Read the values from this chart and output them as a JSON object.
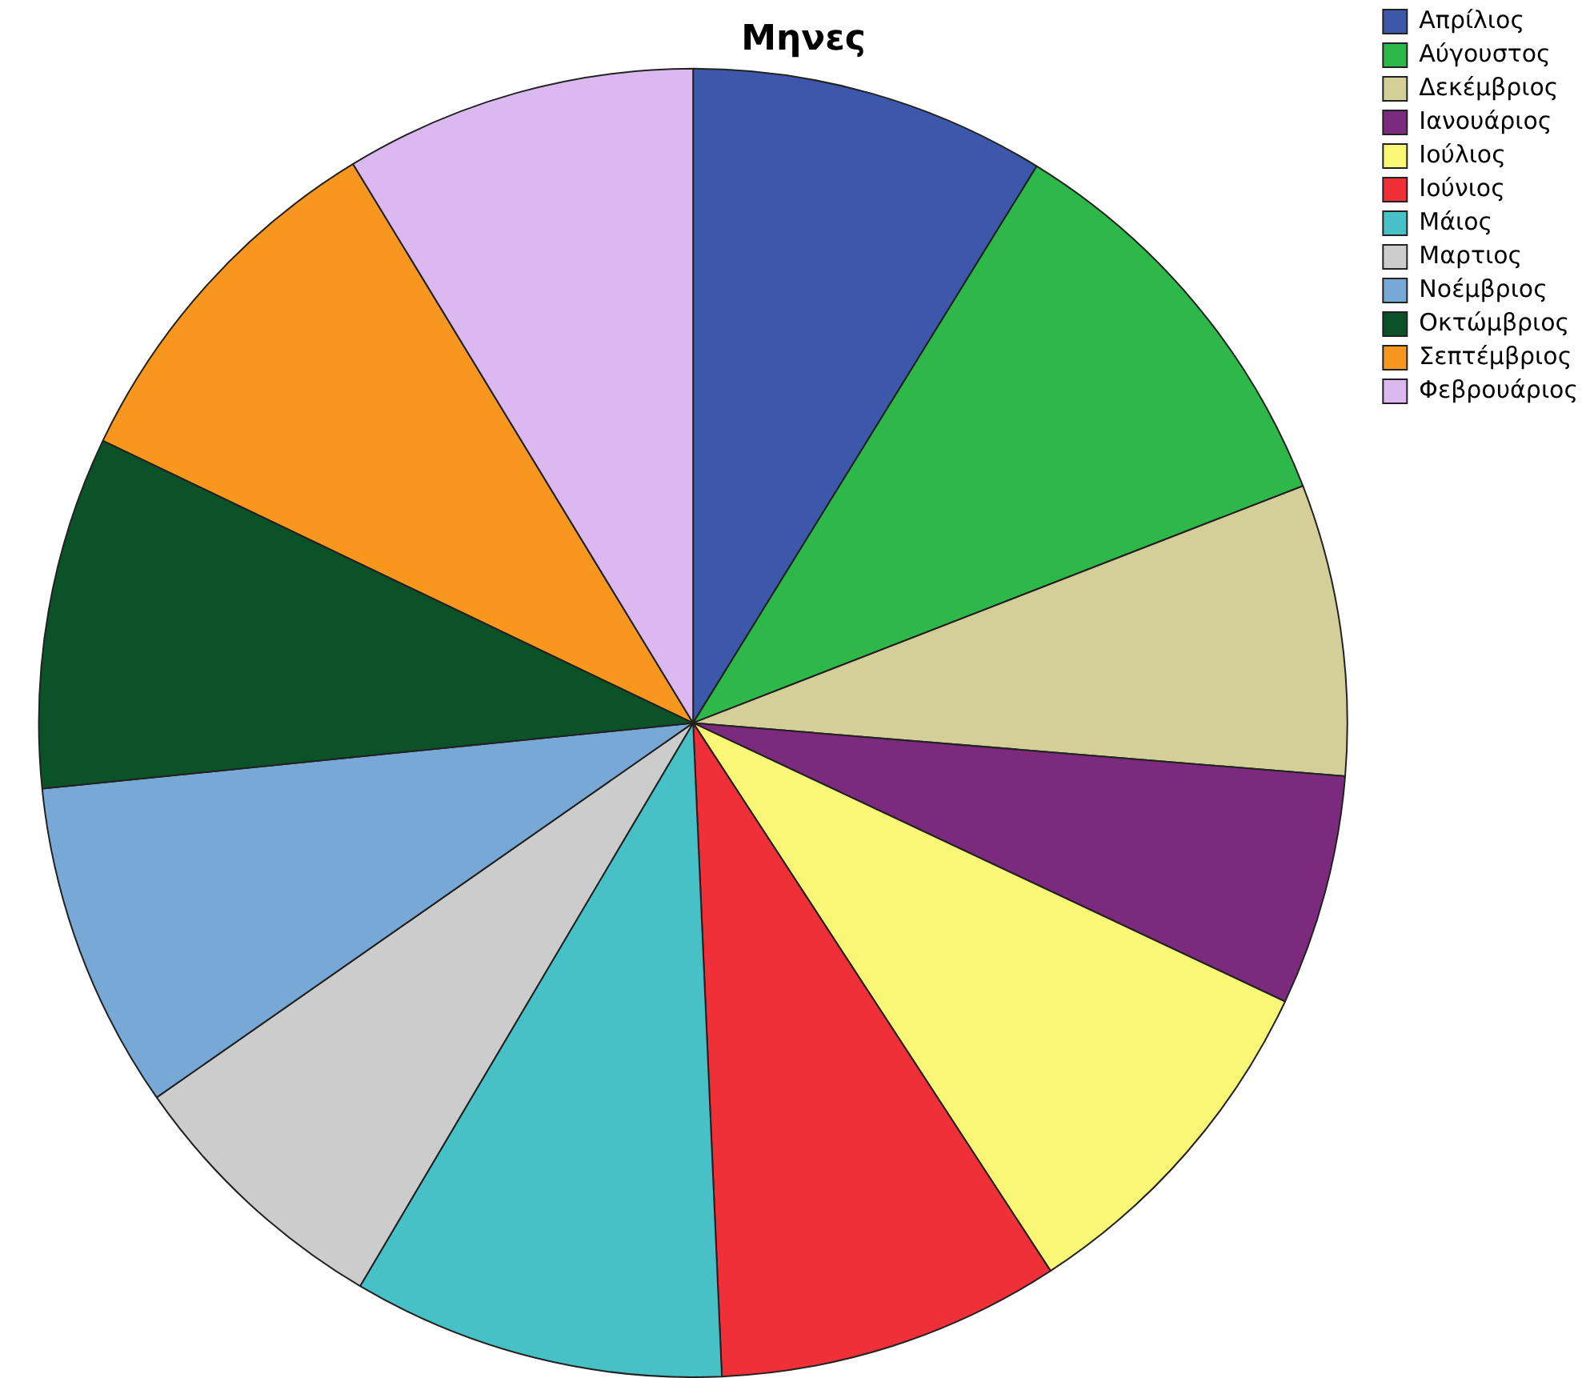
{
  "chart_data": {
    "type": "pie",
    "title": "Μηνες",
    "categories": [
      "Απρίλιος",
      "Αύγουστος",
      "Δεκέμβριος",
      "Ιανουάριος",
      "Ιούλιος",
      "Ιούνιος",
      "Μάιος",
      "Μαρτιος",
      "Νοέμβριος",
      "Οκτώμβριος",
      "Σεπτέμβριος",
      "Φεβρουάριος"
    ],
    "values": [
      8.8,
      10.3,
      7.2,
      5.7,
      8.8,
      8.5,
      9.2,
      6.8,
      8.1,
      8.7,
      9.2,
      8.7
    ],
    "colors": [
      "#3d58aa",
      "#2fb84a",
      "#d4ce98",
      "#7b2a7e",
      "#f9f775",
      "#ef3039",
      "#48c1c6",
      "#cccccc",
      "#78a9d6",
      "#0b5228",
      "#f7971f",
      "#dcb8f1"
    ],
    "legend": "top right"
  }
}
